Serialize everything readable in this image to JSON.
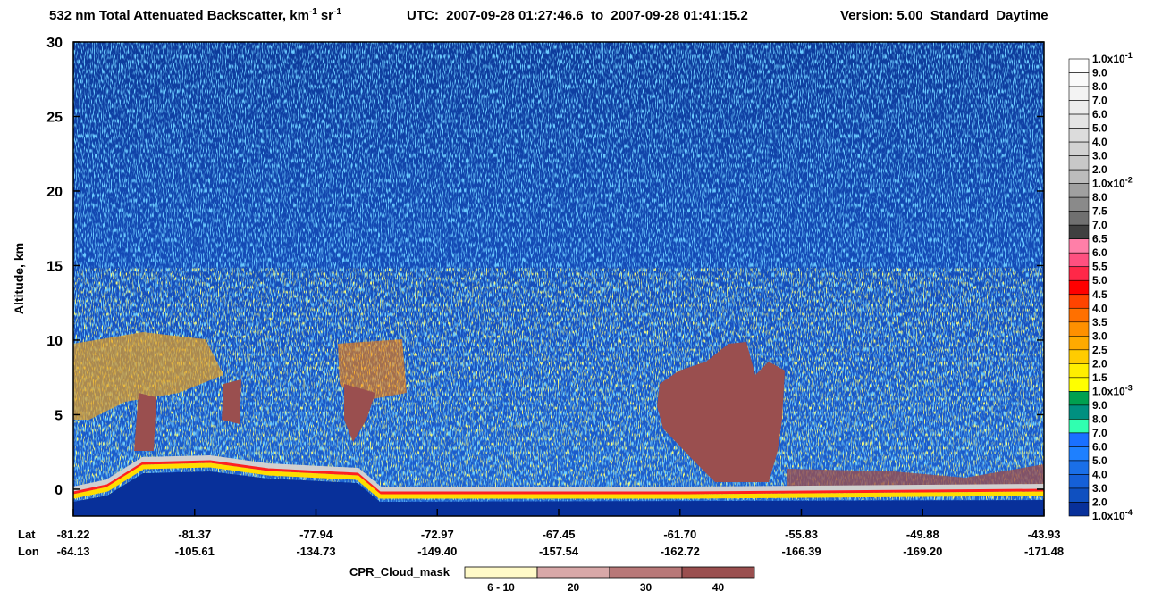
{
  "chart_data": {
    "type": "heatmap",
    "title_parts": [
      "532 nm Total Attenuated Backscatter, km",
      "-1",
      "sr",
      "-1"
    ],
    "utc": "UTC:  2007-09-28 01:27:46.6  to  2007-09-28 01:41:15.2",
    "version": "Version: 5.00  Standard  Daytime",
    "ylabel": "Altitude, km",
    "ylim": [
      -1.8,
      30
    ],
    "yticks": [
      0,
      5,
      10,
      15,
      20,
      25,
      30
    ],
    "x_rows": [
      {
        "name": "Lat",
        "labels": [
          "-81.22",
          "-81.37",
          "-77.94",
          "-72.97",
          "-67.45",
          "-61.70",
          "-55.83",
          "-49.88",
          "-43.93"
        ]
      },
      {
        "name": "Lon",
        "labels": [
          "-64.13",
          "-105.61",
          "-134.73",
          "-149.40",
          "-157.54",
          "-162.72",
          "-166.39",
          "-169.20",
          "-171.48"
        ]
      }
    ],
    "colorbar": {
      "labels": [
        {
          "base": "1.0x10",
          "sup": "-1"
        },
        "9.0",
        "8.0",
        "7.0",
        "6.0",
        "5.0",
        "4.0",
        "3.0",
        "2.0",
        {
          "base": "1.0x10",
          "sup": "-2"
        },
        "8.0",
        "7.5",
        "7.0",
        "6.5",
        "6.0",
        "5.5",
        "5.0",
        "4.5",
        "4.0",
        "3.5",
        "3.0",
        "2.5",
        "2.0",
        "1.5",
        {
          "base": "1.0x10",
          "sup": "-3"
        },
        "9.0",
        "8.0",
        "7.0",
        "6.0",
        "5.0",
        "4.0",
        "3.0",
        "2.0",
        {
          "base": "1.0x10",
          "sup": "-4"
        }
      ],
      "colors": [
        "#ffffff",
        "#fafafa",
        "#f3f3f3",
        "#ececec",
        "#e4e4e4",
        "#dcdcdc",
        "#d2d2d2",
        "#c8c8c8",
        "#bcbcbc",
        "#a0a0a0",
        "#8a8a8a",
        "#707070",
        "#404040",
        "#ff7fa8",
        "#ff5080",
        "#ff2848",
        "#ff0000",
        "#ff4400",
        "#ff7000",
        "#ff9000",
        "#ffaa00",
        "#ffcc00",
        "#ffee00",
        "#ffff00",
        "#00a050",
        "#009080",
        "#30ffb0",
        "#1a70ff",
        "#1e80ff",
        "#1a6fe8",
        "#1560d8",
        "#0f50c0",
        "#08309a"
      ]
    },
    "cpr": {
      "title": "CPR_Cloud_mask",
      "labels": [
        "6 - 10",
        "20",
        "30",
        "40"
      ],
      "colors": [
        "#fffac8",
        "#d8a8a8",
        "#b87878",
        "#9a4f4f"
      ]
    }
  }
}
